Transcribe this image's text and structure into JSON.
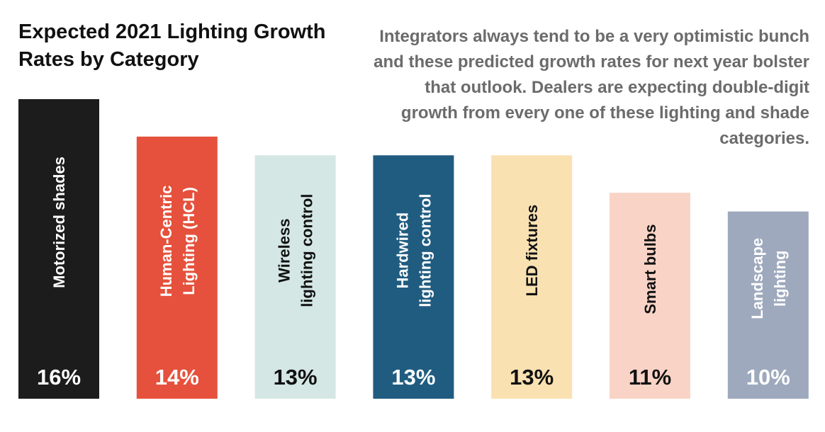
{
  "header": {
    "title": "Expected 2021 Lighting Growth Rates by Category",
    "subtitle": "Integrators always tend to be a very optimistic bunch and these predicted growth rates for next year bolster that outlook. Dealers are expecting double-digit growth from every one of these lighting and shade categories."
  },
  "chart_data": {
    "type": "bar",
    "title": "Expected 2021 Lighting Growth Rates by Category",
    "ylabel": "",
    "xlabel": "",
    "unit": "%",
    "ylim": [
      0,
      16
    ],
    "categories": [
      "Motorized shades",
      "Human-Centric Lighting (HCL)",
      "Wireless lighting control",
      "Hardwired lighting control",
      "LED fixtures",
      "Smart bulbs",
      "Landscape lighting"
    ],
    "category_lines": [
      [
        "Motorized shades"
      ],
      [
        "Human-Centric",
        "Lighting (HCL)"
      ],
      [
        "Wireless",
        "lighting control"
      ],
      [
        "Hardwired",
        "lighting control"
      ],
      [
        "LED fixtures"
      ],
      [
        "Smart bulbs"
      ],
      [
        "Landscape",
        "lighting"
      ]
    ],
    "values": [
      16,
      14,
      13,
      13,
      13,
      11,
      10
    ],
    "value_labels": [
      "16%",
      "14%",
      "13%",
      "13%",
      "13%",
      "11%",
      "10%"
    ],
    "bar_colors": [
      "#1c1c1c",
      "#e5513c",
      "#d4e7e4",
      "#205c80",
      "#fae1b2",
      "#f9d4c6",
      "#9ea9bd"
    ],
    "text_colors": [
      "#ffffff",
      "#ffffff",
      "#111111",
      "#ffffff",
      "#111111",
      "#111111",
      "#ffffff"
    ]
  }
}
